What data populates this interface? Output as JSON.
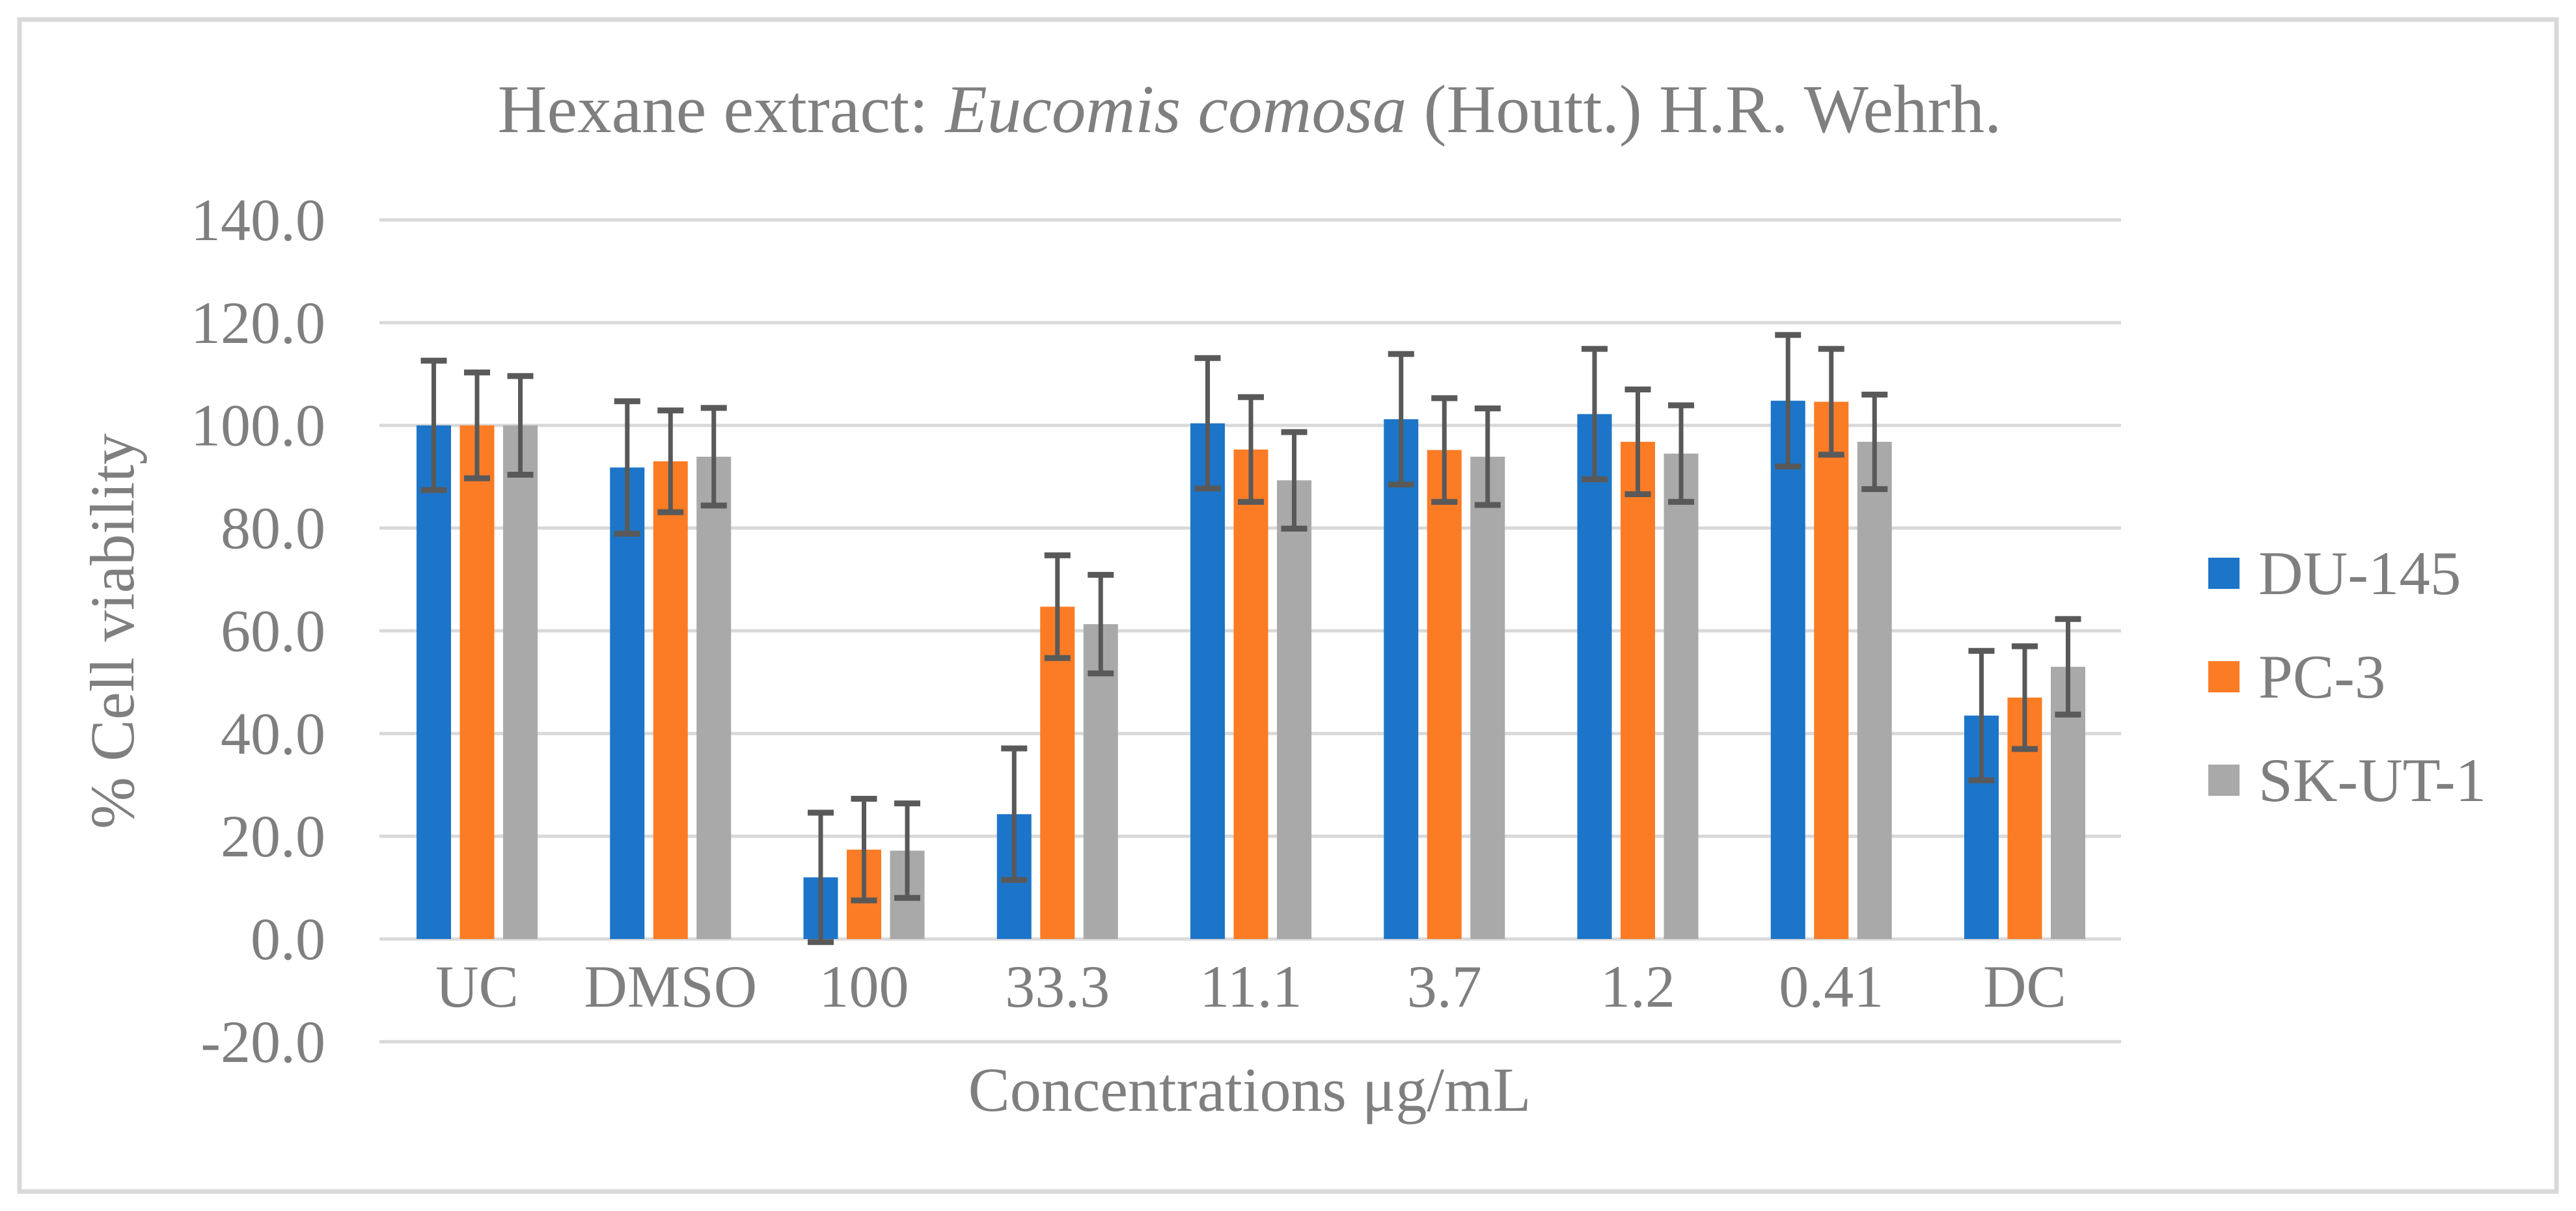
{
  "figure": {
    "background": "#FFFFFF",
    "border_color": "#D9D9D9"
  },
  "chart_data": {
    "type": "bar",
    "title": "Hexane extract: Eucomis comosa (Houtt.) H.R. Wehrh.",
    "title_parts": {
      "prefix": "Hexane extract: ",
      "italic": "Eucomis comosa",
      "suffix": " (Houtt.) H.R. Wehrh."
    },
    "xlabel": "Concentrations μg/mL",
    "ylabel": "% Cell viability",
    "categories": [
      "UC",
      "DMSO",
      "100",
      "33.3",
      "11.1",
      "3.7",
      "1.2",
      "0.41",
      "DC"
    ],
    "y_axis": {
      "min": -20,
      "max": 140,
      "step": 20,
      "tick_labels": [
        "140.0",
        "120.0",
        "100.0",
        "80.0",
        "60.0",
        "40.0",
        "20.0",
        "0.0",
        "-20.0"
      ]
    },
    "grid": true,
    "legend_position": "right",
    "series": [
      {
        "name": "DU-145",
        "color": "#1C75C8",
        "values": [
          100.0,
          91.8,
          12.0,
          24.3,
          100.4,
          101.2,
          102.2,
          104.8,
          43.5
        ],
        "errors": [
          12.6,
          12.9,
          12.6,
          12.8,
          12.7,
          12.7,
          12.7,
          12.8,
          12.6
        ]
      },
      {
        "name": "PC-3",
        "color": "#FB7C25",
        "values": [
          100.0,
          93.0,
          17.4,
          64.7,
          95.3,
          95.2,
          96.8,
          104.6,
          47.0
        ],
        "errors": [
          10.3,
          9.9,
          9.9,
          10.0,
          10.2,
          10.1,
          10.2,
          10.3,
          10.0
        ]
      },
      {
        "name": "SK-UT-1",
        "color": "#A9A9A9",
        "values": [
          100.0,
          93.9,
          17.2,
          61.3,
          89.3,
          93.9,
          94.5,
          96.8,
          53.0
        ],
        "errors": [
          9.6,
          9.5,
          9.2,
          9.6,
          9.4,
          9.4,
          9.4,
          9.2,
          9.3
        ]
      }
    ],
    "error_bar_color": "#595959",
    "text_color": "#7F7F7F",
    "gridline_color": "#D9D9D9"
  }
}
